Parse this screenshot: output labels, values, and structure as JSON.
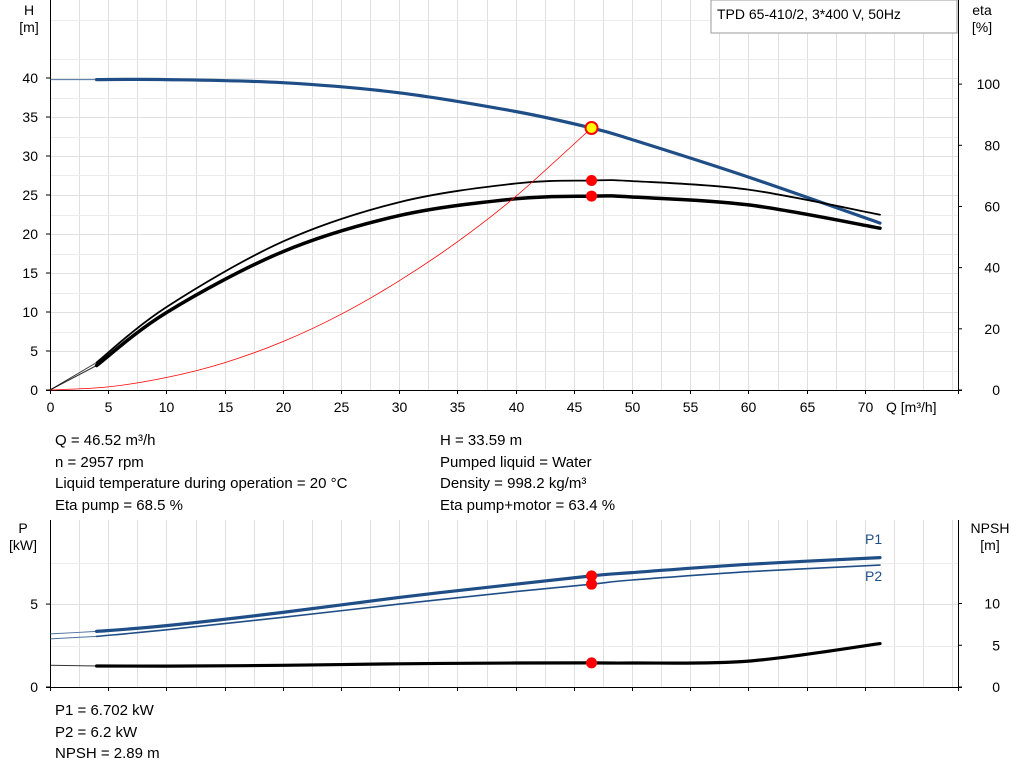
{
  "info": {
    "col1": [
      "Q = 46.52 m³/h",
      "n = 2957 rpm",
      "Liquid temperature during operation = 20 °C",
      "Eta pump = 68.5 %"
    ],
    "col2": [
      "H = 33.59 m",
      "Pumped liquid = Water",
      "Density = 998.2 kg/m³",
      "Eta pump+motor = 63.4 %"
    ],
    "bottom": [
      "P1 = 6.702 kW",
      "P2 = 6.2 kW",
      "NPSH = 2.89 m"
    ]
  },
  "chart_data": [
    {
      "type": "line",
      "title": "TPD 65-410/2, 3*400 V, 50Hz",
      "xlabel": "Q [m³/h]",
      "ylabel": "H\n[m]",
      "y2label": "eta\n[%]",
      "xlim": [
        0,
        78
      ],
      "ylim": [
        0,
        50
      ],
      "y2lim": [
        0,
        127.5
      ],
      "xticks": [
        0,
        5,
        10,
        15,
        20,
        25,
        30,
        35,
        40,
        45,
        50,
        55,
        60,
        65,
        70
      ],
      "yticks": [
        0,
        5,
        10,
        15,
        20,
        25,
        30,
        35,
        40
      ],
      "y2ticks": [
        0,
        20,
        40,
        60,
        80,
        100
      ],
      "grid": true,
      "colors": {
        "head": "#1f4e87",
        "efficiency": "#000000",
        "system": "#ff0000",
        "point": "#ff0000",
        "duty": "#ffff00"
      },
      "series": [
        {
          "id": "head",
          "axis": "left",
          "width": 3.2,
          "extension": [
            [
              -1,
              39.8
            ],
            [
              4,
              39.8
            ]
          ],
          "x": [
            4,
            10,
            20,
            30,
            40,
            46.52,
            50,
            60,
            71.3
          ],
          "y": [
            39.8,
            39.8,
            39.4,
            38.1,
            35.7,
            33.59,
            32.1,
            27.3,
            21.4
          ]
        },
        {
          "id": "eta_pump",
          "axis": "right",
          "width": 1.8,
          "extension": [
            [
              0,
              0
            ],
            [
              4,
              9
            ]
          ],
          "x": [
            4,
            10,
            20,
            30,
            40,
            46.52,
            50,
            60,
            71.3
          ],
          "y": [
            9,
            27.1,
            48.5,
            61.4,
            67.5,
            68.5,
            68.3,
            65.5,
            57.3
          ]
        },
        {
          "id": "eta_pump_motor",
          "axis": "right",
          "width": 3.5,
          "extension": [
            [
              0,
              0
            ],
            [
              4,
              8
            ]
          ],
          "x": [
            4,
            10,
            20,
            30,
            40,
            46.52,
            50,
            60,
            71.3
          ],
          "y": [
            8,
            25.3,
            45.2,
            57,
            62.5,
            63.4,
            63.1,
            60.5,
            52.9
          ]
        },
        {
          "id": "system_curve",
          "axis": "left",
          "width": 0.8,
          "x": [
            0,
            5,
            10,
            15,
            20,
            25,
            30,
            35,
            40,
            46.52
          ],
          "y": [
            0,
            0.4,
            1.6,
            3.5,
            6.2,
            9.7,
            14,
            19,
            24.8,
            33.59
          ]
        }
      ],
      "points": [
        {
          "id": "duty-point",
          "axis": "left",
          "x": 46.52,
          "y": 33.59
        },
        {
          "id": "eta-pump-point",
          "axis": "right",
          "x": 46.52,
          "y": 68.5
        },
        {
          "id": "eta-pump-motor-point",
          "axis": "right",
          "x": 46.52,
          "y": 63.4
        }
      ]
    },
    {
      "type": "line",
      "xlabel": "",
      "ylabel": "P\n[kW]",
      "y2label": "NPSH\n[m]",
      "xlim": [
        0,
        78
      ],
      "ylim": [
        0,
        10.07
      ],
      "y2lim": [
        0,
        20
      ],
      "xticks": [
        0,
        5,
        10,
        15,
        20,
        25,
        30,
        35,
        40,
        45,
        50,
        55,
        60,
        65,
        70
      ],
      "yticks": [
        0,
        5
      ],
      "y2ticks": [
        0,
        5,
        10
      ],
      "grid": true,
      "colors": {
        "P1": "#1f4e87",
        "P2": "#1f4e87",
        "NPSH": "#000000",
        "point": "#ff0000"
      },
      "series": [
        {
          "id": "P1",
          "name": "P1",
          "axis": "left",
          "width": 3.2,
          "extension": [
            [
              -1,
              3.2
            ],
            [
              4,
              3.35
            ]
          ],
          "x": [
            4,
            10,
            20,
            30,
            40,
            46.52,
            50,
            60,
            71.3
          ],
          "y": [
            3.35,
            3.7,
            4.5,
            5.4,
            6.2,
            6.702,
            6.9,
            7.4,
            7.8
          ]
        },
        {
          "id": "P2",
          "name": "P2",
          "axis": "left",
          "width": 1.6,
          "extension": [
            [
              -1,
              2.9
            ],
            [
              4,
              3.05
            ]
          ],
          "x": [
            4,
            10,
            20,
            30,
            40,
            46.52,
            50,
            60,
            71.3
          ],
          "y": [
            3.05,
            3.45,
            4.2,
            5.0,
            5.75,
            6.2,
            6.45,
            6.95,
            7.35
          ]
        },
        {
          "id": "NPSH",
          "name": "NPSH",
          "axis": "right",
          "width": 3.2,
          "extension": [
            [
              -1,
              2.6
            ],
            [
              4,
              2.52
            ]
          ],
          "x": [
            4,
            10,
            20,
            30,
            40,
            46.52,
            50,
            60,
            71.3
          ],
          "y": [
            2.52,
            2.5,
            2.6,
            2.78,
            2.88,
            2.89,
            2.88,
            3.1,
            5.2
          ]
        }
      ],
      "points": [
        {
          "id": "p1-point",
          "axis": "left",
          "x": 46.52,
          "y": 6.702
        },
        {
          "id": "p2-point",
          "axis": "left",
          "x": 46.52,
          "y": 6.2
        },
        {
          "id": "npsh-point",
          "axis": "right",
          "x": 46.52,
          "y": 2.89
        }
      ]
    }
  ]
}
